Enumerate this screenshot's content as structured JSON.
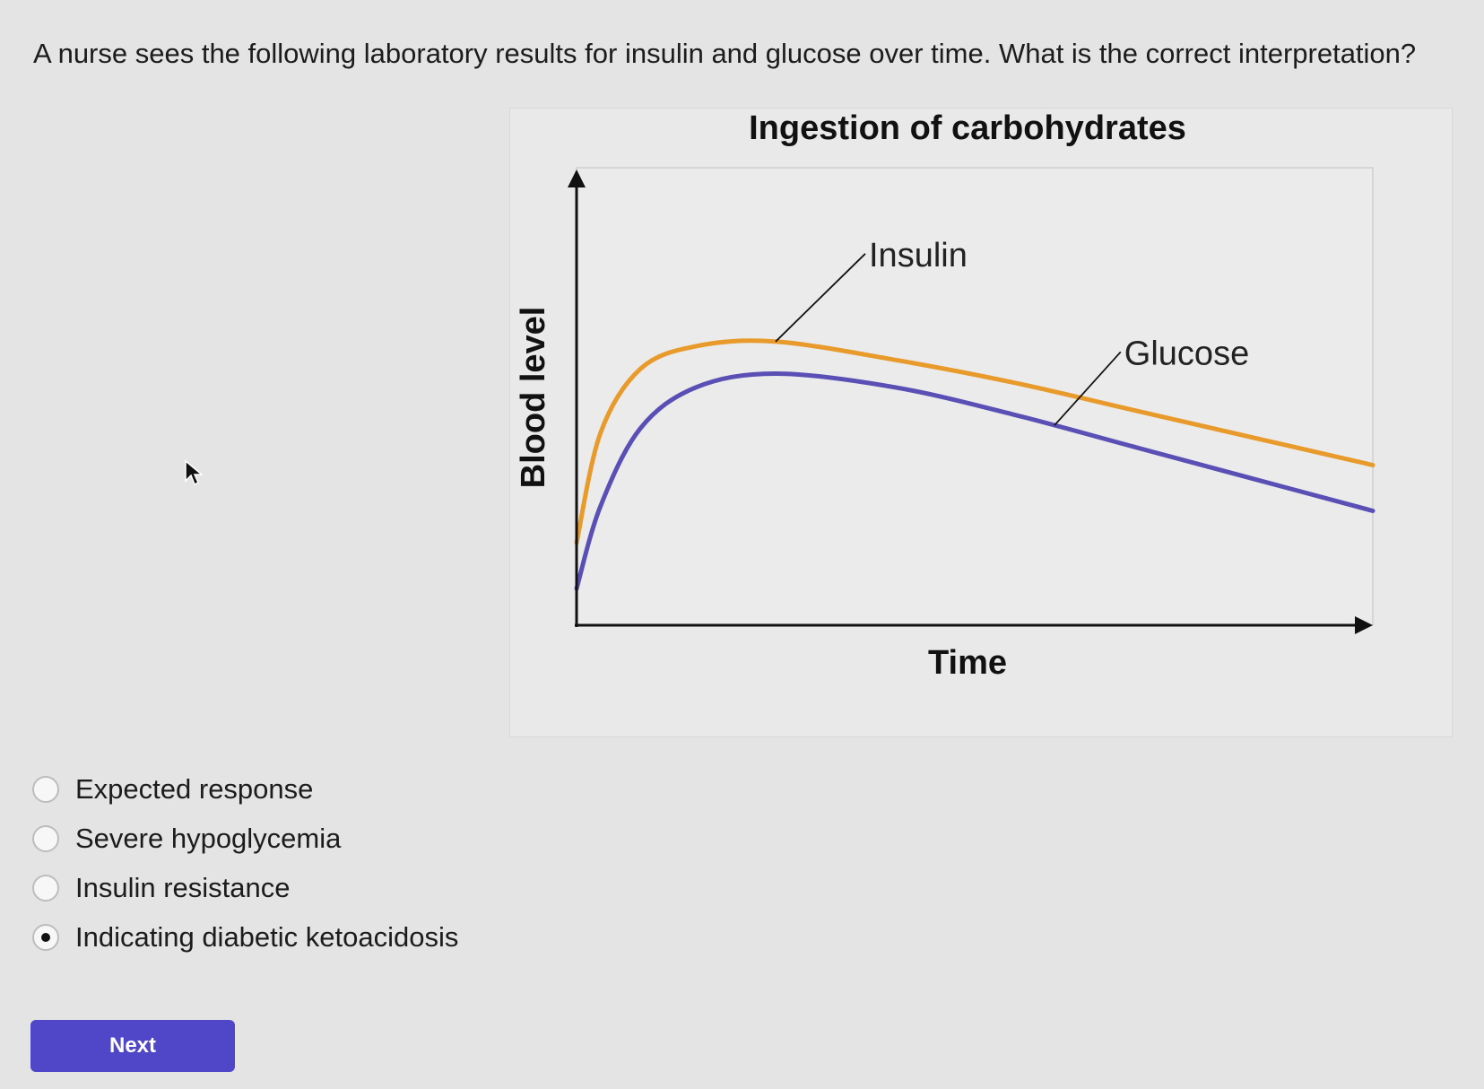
{
  "question": {
    "text": "A nurse sees the following laboratory results for insulin and glucose over time. What is the correct interpretation?"
  },
  "options": [
    {
      "label": "Expected response",
      "selected": false
    },
    {
      "label": "Severe hypoglycemia",
      "selected": false
    },
    {
      "label": "Insulin resistance",
      "selected": false
    },
    {
      "label": "Indicating diabetic ketoacidosis",
      "selected": true
    }
  ],
  "next_button": {
    "label": "Next"
  },
  "colors": {
    "accent": "#5046c8",
    "glucose": "#e89a2a",
    "insulin": "#5a4fb5"
  },
  "chart_data": {
    "type": "line",
    "title": "Ingestion of carbohydrates",
    "xlabel": "Time",
    "ylabel": "Blood level",
    "x": [
      0,
      0.03,
      0.08,
      0.15,
      0.25,
      0.4,
      0.55,
      0.7,
      0.85,
      1.0
    ],
    "series": [
      {
        "name": "Glucose",
        "color": "#e89a2a",
        "values": [
          0.18,
          0.42,
          0.56,
          0.61,
          0.62,
          0.58,
          0.53,
          0.47,
          0.41,
          0.35
        ]
      },
      {
        "name": "Insulin",
        "color": "#5a4fb5",
        "values": [
          0.08,
          0.26,
          0.43,
          0.52,
          0.55,
          0.52,
          0.46,
          0.39,
          0.32,
          0.25
        ]
      }
    ],
    "xlim": [
      0,
      1
    ],
    "ylim": [
      0,
      1
    ],
    "grid": false,
    "annotations": [
      {
        "text": "Insulin",
        "series": "Glucose",
        "x": 0.25
      },
      {
        "text": "Glucose",
        "series": "Insulin",
        "x": 0.6
      }
    ]
  }
}
